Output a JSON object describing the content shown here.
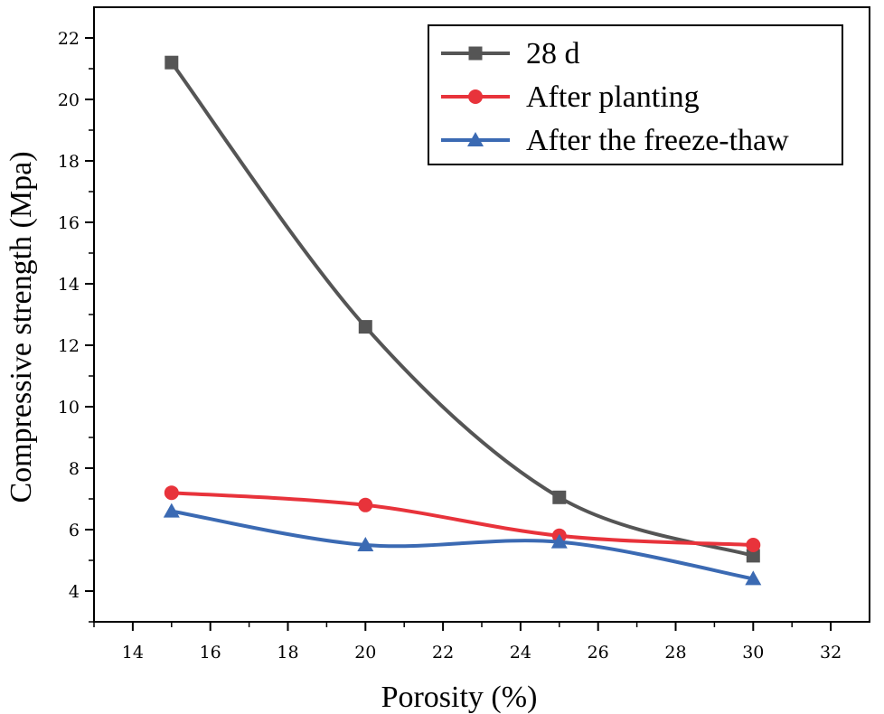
{
  "chart_data": {
    "type": "line",
    "title": "",
    "xlabel": "Porosity (%)",
    "ylabel": "Compressive strength (Mpa)",
    "xlim": [
      13,
      33
    ],
    "ylim": [
      3,
      23
    ],
    "xticks": [
      14,
      16,
      18,
      20,
      22,
      24,
      26,
      28,
      30,
      32
    ],
    "yticks": [
      4,
      6,
      8,
      10,
      12,
      14,
      16,
      18,
      20,
      22
    ],
    "grid": false,
    "legend_position": "top-right",
    "x": [
      15,
      20,
      25,
      30
    ],
    "series": [
      {
        "name": "28 d",
        "values": [
          21.2,
          12.6,
          7.05,
          5.15
        ],
        "color": "#555555",
        "marker": "square"
      },
      {
        "name": "After planting",
        "values": [
          7.2,
          6.8,
          5.8,
          5.5
        ],
        "color": "#e8333b",
        "marker": "circle"
      },
      {
        "name": "After the freeze-thaw",
        "values": [
          6.6,
          5.5,
          5.6,
          4.4
        ],
        "color": "#3b6ab3",
        "marker": "triangle"
      }
    ]
  }
}
